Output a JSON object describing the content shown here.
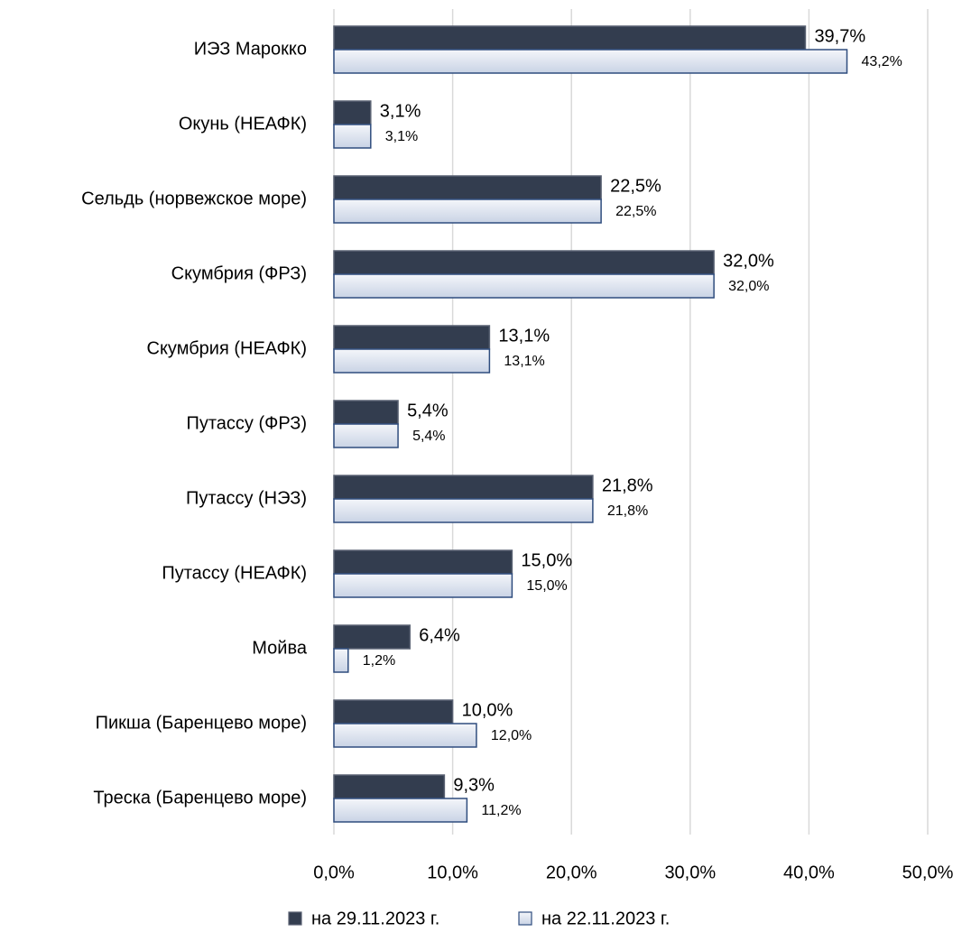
{
  "chart_data": {
    "type": "hbar",
    "categories": [
      "ИЭЗ Марокко",
      "Окунь (НЕАФК)",
      "Сельдь (норвежское море)",
      "Скумбрия (ФРЗ)",
      "Скумбрия (НЕАФК)",
      "Путассу (ФРЗ)",
      "Путассу (НЭЗ)",
      "Путассу (НЕАФК)",
      "Мойва",
      "Пикша (Баренцево море)",
      "Треска (Баренцево море)"
    ],
    "series": [
      {
        "name": "на 29.11.2023 г.",
        "color": "#333d4f",
        "values": [
          39.7,
          3.1,
          22.5,
          32.0,
          13.1,
          5.4,
          21.8,
          15.0,
          6.4,
          10.0,
          9.3
        ],
        "value_labels": [
          "39,7%",
          "3,1%",
          "22,5%",
          "32,0%",
          "13,1%",
          "5,4%",
          "21,8%",
          "15,0%",
          "6,4%",
          "10,0%",
          "9,3%"
        ]
      },
      {
        "name": "на 22.11.2023 г.",
        "color": "#dce3ef",
        "values": [
          43.2,
          3.1,
          22.5,
          32.0,
          13.1,
          5.4,
          21.8,
          15.0,
          1.2,
          12.0,
          11.2
        ],
        "value_labels": [
          "43,2%",
          "3,1%",
          "22,5%",
          "32,0%",
          "13,1%",
          "5,4%",
          "21,8%",
          "15,0%",
          "1,2%",
          "12,0%",
          "11,2%"
        ]
      }
    ],
    "xlim": [
      0,
      50
    ],
    "xticks": [
      {
        "value": 0,
        "label": "0,0%"
      },
      {
        "value": 10,
        "label": "10,0%"
      },
      {
        "value": 20,
        "label": "20,0%"
      },
      {
        "value": 30,
        "label": "30,0%"
      },
      {
        "value": 40,
        "label": "40,0%"
      },
      {
        "value": 50,
        "label": "50,0%"
      }
    ],
    "grid": true,
    "legend": "bottom"
  }
}
